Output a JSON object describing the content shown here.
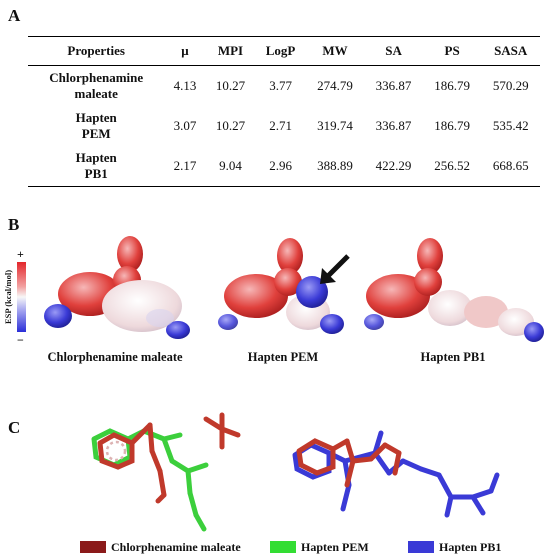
{
  "panels": {
    "a": "A",
    "b": "B",
    "c": "C"
  },
  "table": {
    "headers": [
      "Properties",
      "μ",
      "MPI",
      "LogP",
      "MW",
      "SA",
      "PS",
      "SASA"
    ],
    "rows": [
      {
        "name_line1": "Chlorphenamine",
        "name_line2": "maleate",
        "values": [
          "4.13",
          "10.27",
          "3.77",
          "274.79",
          "336.87",
          "186.79",
          "570.29"
        ]
      },
      {
        "name_line1": "Hapten",
        "name_line2": "PEM",
        "values": [
          "3.07",
          "10.27",
          "2.71",
          "319.74",
          "336.87",
          "186.79",
          "535.42"
        ]
      },
      {
        "name_line1": "Hapten",
        "name_line2": "PB1",
        "values": [
          "2.17",
          "9.04",
          "2.96",
          "388.89",
          "422.29",
          "256.52",
          "668.65"
        ]
      }
    ]
  },
  "esp": {
    "label": "ESP (kcal/mol)",
    "plus": "+",
    "minus": "−"
  },
  "molecules": [
    {
      "label": "Chlorphenamine maleate"
    },
    {
      "label": "Hapten PEM"
    },
    {
      "label": "Hapten PB1"
    }
  ],
  "legend": [
    {
      "label": "Chlorphenamine maleate",
      "color": "#8b1a1a"
    },
    {
      "label": "Hapten PEM",
      "color": "#33dd33"
    },
    {
      "label": "Hapten PB1",
      "color": "#3a3ad6"
    }
  ],
  "colors": {
    "red_stick": "#c0392b",
    "green_stick": "#3ccf3c",
    "blue_stick": "#3a3ad6"
  }
}
